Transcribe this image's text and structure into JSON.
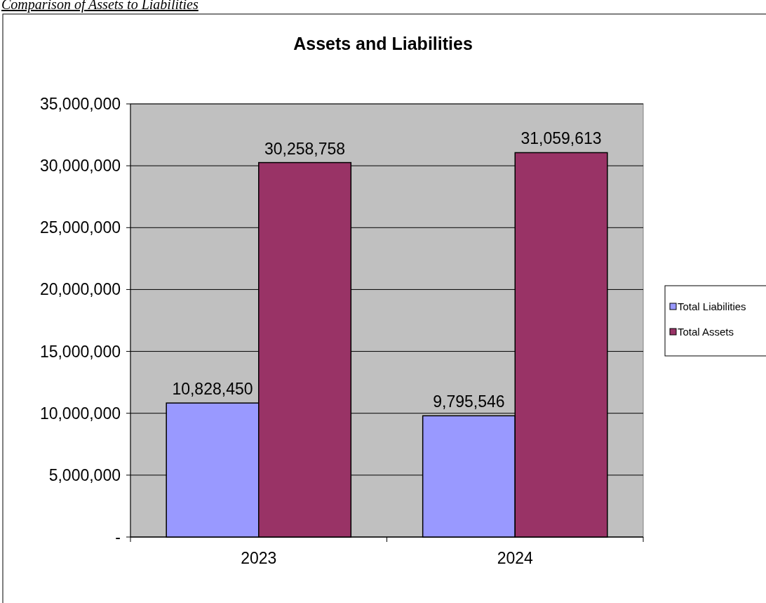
{
  "chart_data": {
    "type": "bar",
    "title": "Assets and Liabilities",
    "annotations": [
      "Comparison of Assets to Liabilities"
    ],
    "categories": [
      "2023",
      "2024"
    ],
    "series": [
      {
        "name": "Total Liabilities",
        "color": "#9999ff",
        "values": [
          10828450,
          9795546
        ],
        "value_labels": [
          "10,828,450",
          "9,795,546"
        ]
      },
      {
        "name": "Total Assets",
        "color": "#993366",
        "values": [
          30258758,
          31059613
        ],
        "value_labels": [
          "30,258,758",
          "31,059,613"
        ]
      }
    ],
    "ylim": [
      0,
      35000000
    ],
    "yticks": [
      {
        "value": 0,
        "label": "-"
      },
      {
        "value": 5000000,
        "label": "5,000,000"
      },
      {
        "value": 10000000,
        "label": "10,000,000"
      },
      {
        "value": 15000000,
        "label": "15,000,000"
      },
      {
        "value": 20000000,
        "label": "20,000,000"
      },
      {
        "value": 25000000,
        "label": "25,000,000"
      },
      {
        "value": 30000000,
        "label": "30,000,000"
      },
      {
        "value": 35000000,
        "label": "35,000,000"
      }
    ],
    "grid": "y",
    "legend": "right"
  }
}
